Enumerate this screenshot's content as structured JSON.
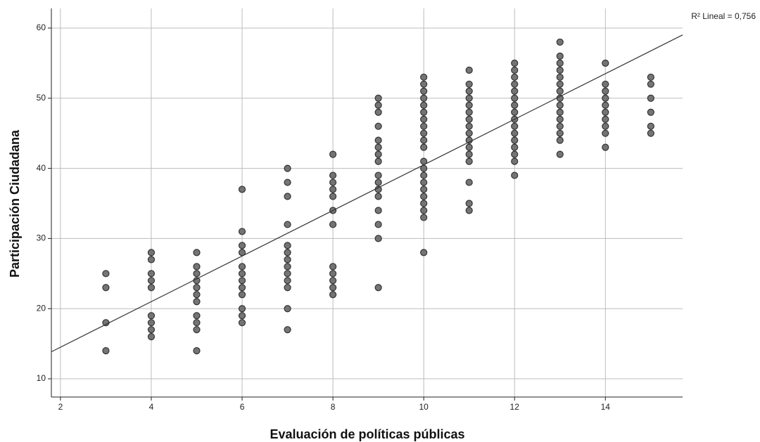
{
  "chart_data": {
    "type": "scatter",
    "xlabel": "Evaluación de políticas públicas",
    "ylabel": "Participación Ciudadana",
    "annotation": "R² Lineal = 0,756",
    "xlim": [
      1.8,
      15.7
    ],
    "ylim": [
      7.4,
      62.8
    ],
    "xticks": [
      2,
      4,
      6,
      8,
      10,
      12,
      14
    ],
    "yticks": [
      10,
      20,
      30,
      40,
      50,
      60
    ],
    "grid": true,
    "color": "#666666",
    "fit": {
      "slope": 3.25,
      "intercept": 8.0
    },
    "x": [
      3,
      3,
      3,
      3,
      4,
      4,
      4,
      4,
      4,
      4,
      4,
      4,
      4,
      5,
      5,
      5,
      5,
      5,
      5,
      5,
      5,
      5,
      5,
      5,
      6,
      6,
      6,
      6,
      6,
      6,
      6,
      6,
      6,
      6,
      6,
      6,
      7,
      7,
      7,
      7,
      7,
      7,
      7,
      7,
      7,
      7,
      7,
      7,
      7,
      8,
      8,
      8,
      8,
      8,
      8,
      8,
      8,
      8,
      8,
      8,
      8,
      9,
      9,
      9,
      9,
      9,
      9,
      9,
      9,
      9,
      9,
      9,
      9,
      9,
      9,
      9,
      9,
      10,
      10,
      10,
      10,
      10,
      10,
      10,
      10,
      10,
      10,
      10,
      10,
      10,
      10,
      10,
      10,
      10,
      10,
      10,
      10,
      10,
      11,
      11,
      11,
      11,
      11,
      11,
      11,
      11,
      11,
      11,
      11,
      11,
      11,
      11,
      11,
      11,
      12,
      12,
      12,
      12,
      12,
      12,
      12,
      12,
      12,
      12,
      12,
      12,
      12,
      12,
      12,
      12,
      13,
      13,
      13,
      13,
      13,
      13,
      13,
      13,
      13,
      13,
      13,
      13,
      13,
      13,
      13,
      14,
      14,
      14,
      14,
      14,
      14,
      14,
      14,
      14,
      14,
      15,
      15,
      15,
      15,
      15,
      15
    ],
    "values": [
      25,
      23,
      18,
      14,
      28,
      27,
      25,
      24,
      23,
      19,
      18,
      17,
      16,
      28,
      26,
      25,
      24,
      23,
      22,
      21,
      19,
      18,
      17,
      14,
      37,
      31,
      29,
      28,
      26,
      25,
      24,
      23,
      22,
      20,
      19,
      18,
      40,
      38,
      36,
      32,
      29,
      28,
      27,
      26,
      25,
      24,
      23,
      20,
      17,
      42,
      39,
      38,
      37,
      36,
      34,
      32,
      26,
      25,
      24,
      23,
      22,
      50,
      49,
      48,
      46,
      44,
      43,
      42,
      41,
      39,
      38,
      37,
      36,
      34,
      32,
      30,
      23,
      53,
      52,
      51,
      50,
      49,
      48,
      47,
      46,
      45,
      44,
      43,
      41,
      40,
      39,
      38,
      37,
      36,
      35,
      34,
      33,
      28,
      54,
      52,
      51,
      50,
      49,
      48,
      47,
      46,
      45,
      44,
      43,
      42,
      41,
      38,
      35,
      34,
      55,
      54,
      53,
      52,
      51,
      50,
      49,
      48,
      47,
      46,
      45,
      44,
      43,
      42,
      41,
      39,
      58,
      56,
      55,
      54,
      53,
      52,
      51,
      50,
      49,
      48,
      47,
      46,
      45,
      44,
      42,
      55,
      52,
      51,
      50,
      49,
      48,
      47,
      46,
      45,
      43,
      53,
      52,
      50,
      48,
      46,
      45
    ]
  }
}
